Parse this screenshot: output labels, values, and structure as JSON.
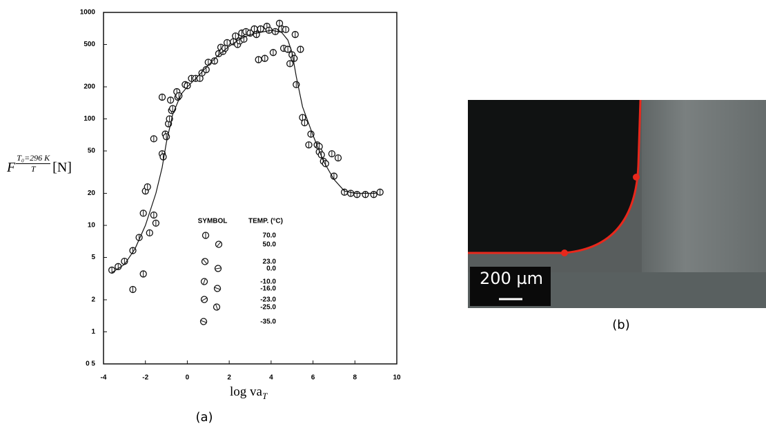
{
  "chart_data": {
    "type": "scatter",
    "y_label": {
      "symbol": "F",
      "numerator": "T₀=296 K",
      "denominator": "T",
      "unit": "[N]"
    },
    "x_label": {
      "text": "log va",
      "subscript": "T"
    },
    "xlim": [
      -4,
      10
    ],
    "xticks": [
      -4,
      -2,
      0,
      2,
      4,
      6,
      8,
      10
    ],
    "ylim": [
      0.5,
      1000
    ],
    "log_y": true,
    "yticks": [
      {
        "value": 0.5,
        "label": "0 5"
      },
      1,
      2,
      5,
      10,
      20,
      50,
      100,
      200,
      500,
      1000
    ],
    "series": [
      {
        "color": "#111111",
        "marker": "circle",
        "x": [
          -3.6,
          -3.3,
          -3.0,
          -2.6,
          -2.3,
          -2.1,
          -2.0,
          -1.9,
          -1.8,
          -1.6,
          -1.5,
          -1.6,
          -1.2,
          -1.15,
          -1.2,
          -1.05,
          -1.0,
          -0.9,
          -0.85,
          -0.8,
          -0.75,
          -0.7,
          -0.5,
          -0.45,
          -0.4,
          -0.1,
          0.0,
          0.2,
          0.4,
          0.6,
          0.7,
          0.9,
          1.0,
          1.3,
          1.5,
          1.6,
          1.7,
          1.8,
          1.9,
          2.2,
          2.3,
          2.4,
          2.5,
          2.6,
          2.7,
          2.8,
          3.0,
          3.2,
          3.3,
          3.4,
          3.5,
          3.7,
          3.8,
          3.9,
          4.2,
          4.1,
          4.4,
          4.5,
          4.6,
          4.7,
          4.8,
          4.9,
          5.0,
          5.1,
          5.15,
          5.2,
          5.4,
          5.5,
          5.6,
          5.9,
          5.8,
          6.2,
          6.3,
          6.3,
          6.4,
          6.5,
          6.6,
          6.9,
          7.0,
          7.2,
          7.5,
          7.8,
          8.1,
          8.5,
          8.9,
          9.2,
          -2.1,
          -2.6
        ],
        "values": [
          3.8,
          4.1,
          4.6,
          5.8,
          7.7,
          13,
          21,
          23,
          8.5,
          12.5,
          10.5,
          65,
          47,
          44,
          160,
          72,
          68,
          90,
          100,
          150,
          120,
          125,
          180,
          160,
          165,
          210,
          205,
          240,
          240,
          240,
          270,
          290,
          340,
          350,
          410,
          470,
          430,
          460,
          520,
          530,
          600,
          500,
          540,
          640,
          560,
          660,
          640,
          700,
          620,
          360,
          700,
          370,
          740,
          680,
          660,
          420,
          790,
          700,
          460,
          690,
          450,
          330,
          400,
          370,
          620,
          210,
          450,
          103,
          92,
          72,
          57,
          57,
          55,
          49,
          46,
          40,
          38,
          47,
          29,
          43,
          20.5,
          20,
          19.5,
          19.5,
          19.5,
          20.5,
          3.5,
          2.5
        ]
      },
      {
        "color": "#111111",
        "style": "line",
        "x": [
          -3.6,
          -3,
          -2.5,
          -2,
          -1.5,
          -1.2,
          -1,
          -0.7,
          -0.3,
          0,
          0.5,
          1,
          1.5,
          2,
          2.5,
          3,
          3.5,
          4,
          4.5,
          4.8,
          5,
          5.2,
          5.5,
          6,
          6.5,
          7,
          7.5,
          8,
          9
        ],
        "values": [
          3.6,
          4.3,
          6,
          10,
          20,
          35,
          60,
          110,
          170,
          200,
          250,
          320,
          400,
          480,
          560,
          620,
          650,
          680,
          650,
          550,
          420,
          250,
          130,
          70,
          40,
          27,
          21,
          20,
          20
        ]
      }
    ],
    "legend_table": {
      "headers": [
        "SYMBOL",
        "TEMP. (°C)"
      ],
      "temps": [
        "70.0",
        "50.0",
        "23.0",
        "0.0",
        "-10.0",
        "-16.0",
        "-23.0",
        "-25.0",
        "-35.0"
      ]
    }
  },
  "panels": {
    "a": "(a)",
    "b": "(b)"
  },
  "image_b": {
    "scale_bar": "200 µm"
  }
}
